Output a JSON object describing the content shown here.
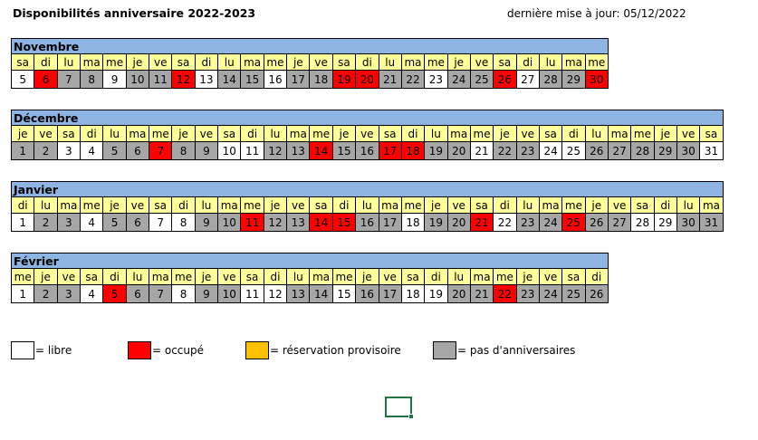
{
  "title": "Disponibilités anniversaire 2022-2023",
  "last_update": "dernière mise à jour: 05/12/2022",
  "status_colors": {
    "libre": "#ffffff",
    "occupe": "#ff0000",
    "provisoire": "#ffc000",
    "pas": "#a6a6a6"
  },
  "months": [
    {
      "name": "Novembre",
      "weekdays": [
        "sa",
        "di",
        "lu",
        "ma",
        "me",
        "je",
        "ve",
        "sa",
        "di",
        "lu",
        "ma",
        "me",
        "je",
        "ve",
        "sa",
        "di",
        "lu",
        "ma",
        "me",
        "je",
        "ve",
        "sa",
        "di",
        "lu",
        "ma",
        "me"
      ],
      "days": [
        {
          "d": "5",
          "s": "libre"
        },
        {
          "d": "6",
          "s": "occupe"
        },
        {
          "d": "7",
          "s": "pas"
        },
        {
          "d": "8",
          "s": "pas"
        },
        {
          "d": "9",
          "s": "libre"
        },
        {
          "d": "10",
          "s": "pas"
        },
        {
          "d": "11",
          "s": "pas"
        },
        {
          "d": "12",
          "s": "occupe"
        },
        {
          "d": "13",
          "s": "libre"
        },
        {
          "d": "14",
          "s": "pas"
        },
        {
          "d": "15",
          "s": "pas"
        },
        {
          "d": "16",
          "s": "libre"
        },
        {
          "d": "17",
          "s": "pas"
        },
        {
          "d": "18",
          "s": "pas"
        },
        {
          "d": "19",
          "s": "occupe"
        },
        {
          "d": "20",
          "s": "occupe"
        },
        {
          "d": "21",
          "s": "pas"
        },
        {
          "d": "22",
          "s": "pas"
        },
        {
          "d": "23",
          "s": "libre"
        },
        {
          "d": "24",
          "s": "pas"
        },
        {
          "d": "25",
          "s": "pas"
        },
        {
          "d": "26",
          "s": "occupe"
        },
        {
          "d": "27",
          "s": "libre"
        },
        {
          "d": "28",
          "s": "pas"
        },
        {
          "d": "29",
          "s": "pas"
        },
        {
          "d": "30",
          "s": "occupe"
        }
      ]
    },
    {
      "name": "Décembre",
      "weekdays": [
        "je",
        "ve",
        "sa",
        "di",
        "lu",
        "ma",
        "me",
        "je",
        "ve",
        "sa",
        "di",
        "lu",
        "ma",
        "me",
        "je",
        "ve",
        "sa",
        "di",
        "lu",
        "ma",
        "me",
        "je",
        "ve",
        "sa",
        "di",
        "lu",
        "ma",
        "me",
        "je",
        "ve",
        "sa"
      ],
      "days": [
        {
          "d": "1",
          "s": "pas"
        },
        {
          "d": "2",
          "s": "pas"
        },
        {
          "d": "3",
          "s": "libre"
        },
        {
          "d": "4",
          "s": "libre"
        },
        {
          "d": "5",
          "s": "pas"
        },
        {
          "d": "6",
          "s": "pas"
        },
        {
          "d": "7",
          "s": "occupe"
        },
        {
          "d": "8",
          "s": "pas"
        },
        {
          "d": "9",
          "s": "pas"
        },
        {
          "d": "10",
          "s": "libre"
        },
        {
          "d": "11",
          "s": "libre"
        },
        {
          "d": "12",
          "s": "pas"
        },
        {
          "d": "13",
          "s": "pas"
        },
        {
          "d": "14",
          "s": "occupe"
        },
        {
          "d": "15",
          "s": "pas"
        },
        {
          "d": "16",
          "s": "pas"
        },
        {
          "d": "17",
          "s": "occupe"
        },
        {
          "d": "18",
          "s": "occupe"
        },
        {
          "d": "19",
          "s": "pas"
        },
        {
          "d": "20",
          "s": "pas"
        },
        {
          "d": "21",
          "s": "libre"
        },
        {
          "d": "22",
          "s": "pas"
        },
        {
          "d": "23",
          "s": "pas"
        },
        {
          "d": "24",
          "s": "libre"
        },
        {
          "d": "25",
          "s": "libre"
        },
        {
          "d": "26",
          "s": "pas"
        },
        {
          "d": "27",
          "s": "pas"
        },
        {
          "d": "28",
          "s": "pas"
        },
        {
          "d": "29",
          "s": "pas"
        },
        {
          "d": "30",
          "s": "pas"
        },
        {
          "d": "31",
          "s": "libre"
        }
      ]
    },
    {
      "name": "Janvier",
      "weekdays": [
        "di",
        "lu",
        "ma",
        "me",
        "je",
        "ve",
        "sa",
        "di",
        "lu",
        "ma",
        "me",
        "je",
        "ve",
        "sa",
        "di",
        "lu",
        "ma",
        "me",
        "je",
        "ve",
        "sa",
        "di",
        "lu",
        "ma",
        "me",
        "je",
        "ve",
        "sa",
        "di",
        "lu",
        "ma"
      ],
      "days": [
        {
          "d": "1",
          "s": "libre"
        },
        {
          "d": "2",
          "s": "pas"
        },
        {
          "d": "3",
          "s": "pas"
        },
        {
          "d": "4",
          "s": "libre"
        },
        {
          "d": "5",
          "s": "pas"
        },
        {
          "d": "6",
          "s": "pas"
        },
        {
          "d": "7",
          "s": "libre"
        },
        {
          "d": "8",
          "s": "libre"
        },
        {
          "d": "9",
          "s": "pas"
        },
        {
          "d": "10",
          "s": "pas"
        },
        {
          "d": "11",
          "s": "occupe"
        },
        {
          "d": "12",
          "s": "pas"
        },
        {
          "d": "13",
          "s": "pas"
        },
        {
          "d": "14",
          "s": "occupe"
        },
        {
          "d": "15",
          "s": "occupe"
        },
        {
          "d": "16",
          "s": "pas"
        },
        {
          "d": "17",
          "s": "pas"
        },
        {
          "d": "18",
          "s": "libre"
        },
        {
          "d": "19",
          "s": "pas"
        },
        {
          "d": "20",
          "s": "pas"
        },
        {
          "d": "21",
          "s": "occupe"
        },
        {
          "d": "22",
          "s": "libre"
        },
        {
          "d": "23",
          "s": "pas"
        },
        {
          "d": "24",
          "s": "pas"
        },
        {
          "d": "25",
          "s": "occupe"
        },
        {
          "d": "26",
          "s": "pas"
        },
        {
          "d": "27",
          "s": "pas"
        },
        {
          "d": "28",
          "s": "libre"
        },
        {
          "d": "29",
          "s": "libre"
        },
        {
          "d": "30",
          "s": "pas"
        },
        {
          "d": "31",
          "s": "pas"
        }
      ]
    },
    {
      "name": "Février",
      "weekdays": [
        "me",
        "je",
        "ve",
        "sa",
        "di",
        "lu",
        "ma",
        "me",
        "je",
        "ve",
        "sa",
        "di",
        "lu",
        "ma",
        "me",
        "je",
        "ve",
        "sa",
        "di",
        "lu",
        "ma",
        "me",
        "je",
        "ve",
        "sa",
        "di"
      ],
      "days": [
        {
          "d": "1",
          "s": "libre"
        },
        {
          "d": "2",
          "s": "pas"
        },
        {
          "d": "3",
          "s": "pas"
        },
        {
          "d": "4",
          "s": "libre"
        },
        {
          "d": "5",
          "s": "occupe"
        },
        {
          "d": "6",
          "s": "pas"
        },
        {
          "d": "7",
          "s": "pas"
        },
        {
          "d": "8",
          "s": "libre"
        },
        {
          "d": "9",
          "s": "pas"
        },
        {
          "d": "10",
          "s": "pas"
        },
        {
          "d": "11",
          "s": "libre"
        },
        {
          "d": "12",
          "s": "libre"
        },
        {
          "d": "13",
          "s": "pas"
        },
        {
          "d": "14",
          "s": "pas"
        },
        {
          "d": "15",
          "s": "libre"
        },
        {
          "d": "16",
          "s": "pas"
        },
        {
          "d": "17",
          "s": "pas"
        },
        {
          "d": "18",
          "s": "libre"
        },
        {
          "d": "19",
          "s": "libre"
        },
        {
          "d": "20",
          "s": "pas"
        },
        {
          "d": "21",
          "s": "pas"
        },
        {
          "d": "22",
          "s": "occupe"
        },
        {
          "d": "23",
          "s": "pas"
        },
        {
          "d": "24",
          "s": "pas"
        },
        {
          "d": "25",
          "s": "pas"
        },
        {
          "d": "26",
          "s": "pas"
        }
      ]
    }
  ],
  "legend": [
    {
      "status": "libre",
      "label": "= libre"
    },
    {
      "status": "occupe",
      "label": "= occupé"
    },
    {
      "status": "provisoire",
      "label": "= réservation provisoire"
    },
    {
      "status": "pas",
      "label": "= pas d'anniversaires"
    }
  ]
}
